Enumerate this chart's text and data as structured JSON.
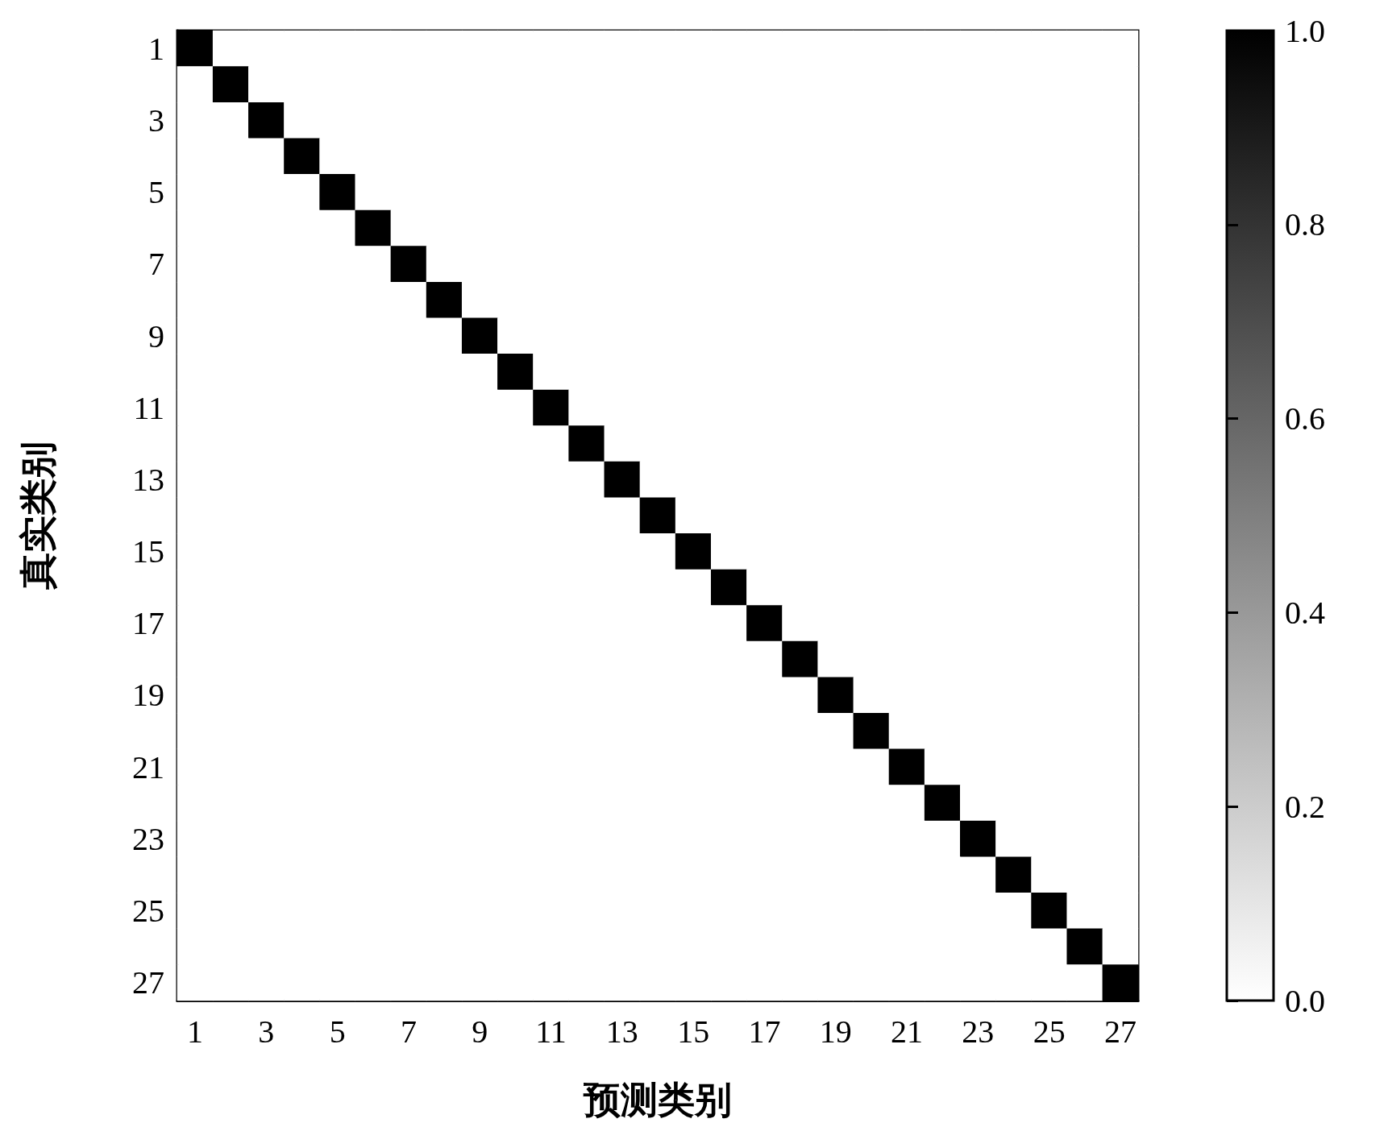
{
  "chart_data": {
    "type": "heatmap",
    "xlabel": "预测类别",
    "ylabel": "真实类别",
    "categories": [
      "1",
      null,
      "3",
      null,
      "5",
      null,
      "7",
      null,
      "9",
      null,
      "11",
      null,
      "13",
      null,
      "15",
      null,
      "17",
      null,
      "19",
      null,
      "21",
      null,
      "23",
      null,
      "25",
      null,
      "27"
    ],
    "y_categories": [
      "1",
      null,
      "3",
      null,
      "5",
      null,
      "7",
      null,
      "9",
      null,
      "11",
      null,
      "13",
      null,
      "15",
      null,
      "17",
      null,
      "19",
      null,
      "21",
      null,
      "23",
      null,
      "25",
      null,
      "27"
    ],
    "cells": [
      [
        1,
        0,
        0,
        0,
        0,
        0,
        0,
        0,
        0,
        0,
        0,
        0,
        0,
        0,
        0,
        0,
        0,
        0,
        0,
        0,
        0,
        0,
        0,
        0,
        0,
        0,
        0
      ],
      [
        0,
        1,
        0,
        0,
        0,
        0,
        0,
        0,
        0,
        0,
        0,
        0,
        0,
        0,
        0,
        0,
        0,
        0,
        0,
        0,
        0,
        0,
        0,
        0,
        0,
        0,
        0
      ],
      [
        0,
        0,
        1,
        0,
        0,
        0,
        0,
        0,
        0,
        0,
        0,
        0,
        0,
        0,
        0,
        0,
        0,
        0,
        0,
        0,
        0,
        0,
        0,
        0,
        0,
        0,
        0
      ],
      [
        0,
        0,
        0,
        1,
        0,
        0,
        0,
        0,
        0,
        0,
        0,
        0,
        0,
        0,
        0,
        0,
        0,
        0,
        0,
        0,
        0,
        0,
        0,
        0,
        0,
        0,
        0
      ],
      [
        0,
        0,
        0,
        0,
        1,
        0,
        0,
        0,
        0,
        0,
        0,
        0,
        0,
        0,
        0,
        0,
        0,
        0,
        0,
        0,
        0,
        0,
        0,
        0,
        0,
        0,
        0
      ],
      [
        0,
        0,
        0,
        0,
        0,
        1,
        0,
        0,
        0,
        0,
        0,
        0,
        0,
        0,
        0,
        0,
        0,
        0,
        0,
        0,
        0,
        0,
        0,
        0,
        0,
        0,
        0
      ],
      [
        0,
        0,
        0,
        0,
        0,
        0,
        1,
        0,
        0,
        0,
        0,
        0,
        0,
        0,
        0,
        0,
        0,
        0,
        0,
        0,
        0,
        0,
        0,
        0,
        0,
        0,
        0
      ],
      [
        0,
        0,
        0,
        0,
        0,
        0,
        0,
        1,
        0,
        0,
        0,
        0,
        0,
        0,
        0,
        0,
        0,
        0,
        0,
        0,
        0,
        0,
        0,
        0,
        0,
        0,
        0
      ],
      [
        0,
        0,
        0,
        0,
        0,
        0,
        0,
        0,
        1,
        0,
        0,
        0,
        0,
        0,
        0,
        0,
        0,
        0,
        0,
        0,
        0,
        0,
        0,
        0,
        0,
        0,
        0
      ],
      [
        0,
        0,
        0,
        0,
        0,
        0,
        0,
        0,
        0,
        1,
        0,
        0,
        0,
        0,
        0,
        0,
        0,
        0,
        0,
        0,
        0,
        0,
        0,
        0,
        0,
        0,
        0
      ],
      [
        0,
        0,
        0,
        0,
        0,
        0,
        0,
        0,
        0,
        0,
        1,
        0,
        0,
        0,
        0,
        0,
        0,
        0,
        0,
        0,
        0,
        0,
        0,
        0,
        0,
        0,
        0
      ],
      [
        0,
        0,
        0,
        0,
        0,
        0,
        0,
        0,
        0,
        0,
        0,
        1,
        0,
        0,
        0,
        0,
        0,
        0,
        0,
        0,
        0,
        0,
        0,
        0,
        0,
        0,
        0
      ],
      [
        0,
        0,
        0,
        0,
        0,
        0,
        0,
        0,
        0,
        0,
        0,
        0,
        1,
        0,
        0,
        0,
        0,
        0,
        0,
        0,
        0,
        0,
        0,
        0,
        0,
        0,
        0
      ],
      [
        0,
        0,
        0,
        0,
        0,
        0,
        0,
        0,
        0,
        0,
        0,
        0,
        0,
        1,
        0,
        0,
        0,
        0,
        0,
        0,
        0,
        0,
        0,
        0,
        0,
        0,
        0
      ],
      [
        0,
        0,
        0,
        0,
        0,
        0,
        0,
        0,
        0,
        0,
        0,
        0,
        0,
        0,
        1,
        0,
        0,
        0,
        0,
        0,
        0,
        0,
        0,
        0,
        0,
        0,
        0
      ],
      [
        0,
        0,
        0,
        0,
        0,
        0,
        0,
        0,
        0,
        0,
        0,
        0,
        0,
        0,
        0,
        1,
        0,
        0,
        0,
        0,
        0,
        0,
        0,
        0,
        0,
        0,
        0
      ],
      [
        0,
        0,
        0,
        0,
        0,
        0,
        0,
        0,
        0,
        0,
        0,
        0,
        0,
        0,
        0,
        0,
        1,
        0,
        0,
        0,
        0,
        0,
        0,
        0,
        0,
        0,
        0
      ],
      [
        0,
        0,
        0,
        0,
        0,
        0,
        0,
        0,
        0,
        0,
        0,
        0,
        0,
        0,
        0,
        0,
        0,
        1,
        0,
        0,
        0,
        0,
        0,
        0,
        0,
        0,
        0
      ],
      [
        0,
        0,
        0,
        0,
        0,
        0,
        0,
        0,
        0,
        0,
        0,
        0,
        0,
        0,
        0,
        0,
        0,
        0,
        1,
        0,
        0,
        0,
        0,
        0,
        0,
        0,
        0
      ],
      [
        0,
        0,
        0,
        0,
        0,
        0,
        0,
        0,
        0,
        0,
        0,
        0,
        0,
        0,
        0,
        0,
        0,
        0,
        0,
        1,
        0,
        0,
        0,
        0,
        0,
        0,
        0
      ],
      [
        0,
        0,
        0,
        0,
        0,
        0,
        0,
        0,
        0,
        0,
        0,
        0,
        0,
        0,
        0,
        0,
        0,
        0,
        0,
        0,
        1,
        0,
        0,
        0,
        0,
        0,
        0
      ],
      [
        0,
        0,
        0,
        0,
        0,
        0,
        0,
        0,
        0,
        0,
        0,
        0,
        0,
        0,
        0,
        0,
        0,
        0,
        0,
        0,
        0,
        1,
        0,
        0,
        0,
        0,
        0
      ],
      [
        0,
        0,
        0,
        0,
        0,
        0,
        0,
        0,
        0,
        0,
        0,
        0,
        0,
        0,
        0,
        0,
        0,
        0,
        0,
        0,
        0,
        0,
        1,
        0,
        0,
        0,
        0
      ],
      [
        0,
        0,
        0,
        0,
        0,
        0,
        0,
        0,
        0,
        0,
        0,
        0,
        0,
        0,
        0,
        0,
        0,
        0,
        0,
        0,
        0,
        0,
        0,
        1,
        0,
        0,
        0
      ],
      [
        0,
        0,
        0,
        0,
        0,
        0,
        0,
        0,
        0,
        0,
        0,
        0,
        0,
        0,
        0,
        0,
        0,
        0,
        0,
        0,
        0,
        0,
        0,
        0,
        1,
        0,
        0
      ],
      [
        0,
        0,
        0,
        0,
        0,
        0,
        0,
        0,
        0,
        0,
        0,
        0,
        0,
        0,
        0,
        0,
        0,
        0,
        0,
        0,
        0,
        0,
        0,
        0,
        0,
        1,
        0
      ],
      [
        0,
        0,
        0,
        0,
        0,
        0,
        0,
        0,
        0,
        0,
        0,
        0,
        0,
        0,
        0,
        0,
        0,
        0,
        0,
        0,
        0,
        0,
        0,
        0,
        0,
        0,
        1
      ]
    ],
    "clim": [
      0,
      1
    ],
    "cticks": [
      {
        "value": 0,
        "label": "0.0"
      },
      {
        "value": 0.2,
        "label": "0.2"
      },
      {
        "value": 0.4,
        "label": "0.4"
      },
      {
        "value": 0.6,
        "label": "0.6"
      },
      {
        "value": 0.8,
        "label": "0.8"
      },
      {
        "value": 1,
        "label": "1.0"
      }
    ]
  }
}
